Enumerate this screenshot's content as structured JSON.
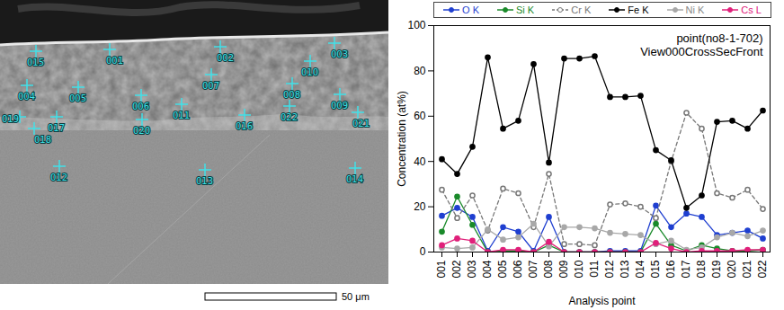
{
  "chart_data": {
    "type": "line",
    "title": "point(no8-1-702)",
    "subtitle": "View000CrossSecFront",
    "x_label": "Analysis point",
    "y_label": "Concentration (at%)",
    "categories": [
      "001",
      "002",
      "003",
      "004",
      "005",
      "006",
      "007",
      "008",
      "009",
      "010",
      "011",
      "012",
      "013",
      "014",
      "015",
      "016",
      "017",
      "018",
      "019",
      "020",
      "021",
      "022"
    ],
    "ylim": [
      0,
      100
    ],
    "yticks": [
      0,
      20,
      40,
      60,
      80,
      100
    ],
    "grid": false,
    "legend": "top",
    "series": [
      {
        "name": "O K",
        "color": "#1f3fd0",
        "marker": "circle",
        "line_style": "solid",
        "values": [
          16,
          19.5,
          15.5,
          0.5,
          11,
          9,
          0.5,
          15.5,
          0,
          0,
          0,
          0.5,
          0.5,
          0.5,
          20.5,
          11,
          17,
          15.5,
          7.5,
          8.5,
          9.5,
          6
        ]
      },
      {
        "name": "Si K",
        "color": "#1a8a2a",
        "marker": "circle",
        "line_style": "solid",
        "values": [
          9,
          24.5,
          12,
          0,
          0.5,
          0.5,
          0,
          3,
          0,
          0,
          0,
          0,
          0,
          0,
          12.5,
          3,
          0.5,
          3,
          1.5,
          0.5,
          0.5,
          1
        ]
      },
      {
        "name": "Cr K",
        "color": "#777777",
        "marker": "open_circle",
        "line_style": "dashed",
        "values": [
          27.5,
          15,
          25,
          9.5,
          28,
          26,
          11,
          34.5,
          3.5,
          3.5,
          3,
          21,
          21.5,
          20,
          15,
          40,
          61.5,
          54.5,
          26,
          24,
          27.5,
          19
        ]
      },
      {
        "name": "Fe K",
        "color": "#000000",
        "marker": "circle",
        "line_style": "solid",
        "values": [
          41,
          34.5,
          46.5,
          86,
          54.5,
          58,
          83,
          39.5,
          85.5,
          85.5,
          86.5,
          68.5,
          68.5,
          69,
          45,
          40.5,
          19.5,
          25,
          57.5,
          58,
          54.5,
          62.5
        ]
      },
      {
        "name": "Ni K",
        "color": "#a8a8a8",
        "marker": "circle",
        "line_style": "solid",
        "values": [
          2,
          1.5,
          2,
          10,
          5.5,
          6.5,
          12.5,
          2.5,
          11,
          11,
          10.5,
          8.5,
          8,
          7.5,
          3.5,
          5,
          1,
          2,
          6.5,
          8.5,
          7,
          9.5
        ]
      },
      {
        "name": "Cs L",
        "color": "#e0207a",
        "marker": "circle",
        "line_style": "solid",
        "values": [
          3,
          6,
          5,
          0,
          1,
          1,
          0,
          4.5,
          0,
          0,
          0,
          0,
          0,
          0,
          4,
          1.5,
          0,
          0.5,
          0.5,
          0.5,
          1,
          1
        ]
      }
    ]
  },
  "image": {
    "point_labels": [
      "001",
      "002",
      "003",
      "004",
      "005",
      "006",
      "007",
      "008",
      "009",
      "010",
      "011",
      "012",
      "013",
      "014",
      "015",
      "016",
      "017",
      "018",
      "019",
      "020",
      "021",
      "022"
    ],
    "scale_bar": "50 μm"
  }
}
